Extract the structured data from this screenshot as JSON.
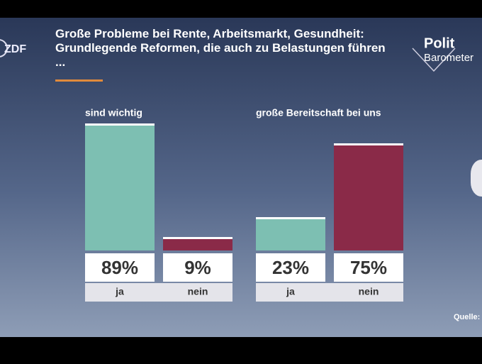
{
  "title": "Große Probleme bei Rente, Arbeitsmarkt, Gesundheit: Grundlegende Reformen, die auch zu Belastungen führen ...",
  "branding": {
    "broadcaster": "ZDF",
    "show": [
      "Polit",
      "Barometer"
    ],
    "source": "Quelle:"
  },
  "chart_data": [
    {
      "type": "bar",
      "title": "sind wichtig",
      "categories": [
        "ja",
        "nein"
      ],
      "values": [
        89,
        9
      ],
      "value_labels": [
        "89%",
        "9%"
      ],
      "colors": [
        "#7dbfb2",
        "#8a2a48"
      ]
    },
    {
      "type": "bar",
      "title": "große Bereitschaft bei uns",
      "categories": [
        "ja",
        "nein"
      ],
      "values": [
        23,
        75
      ],
      "value_labels": [
        "23%",
        "75%"
      ],
      "colors": [
        "#7dbfb2",
        "#8a2a48"
      ]
    }
  ]
}
